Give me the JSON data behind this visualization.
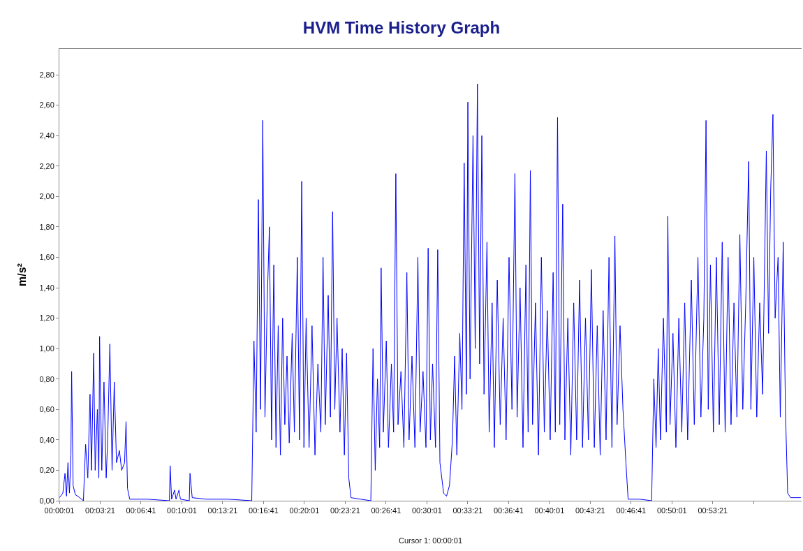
{
  "chart_data": {
    "type": "line",
    "title": "HVM Time History Graph",
    "ylabel": "m/s²",
    "annotations": [
      "Cursor 1: 00:00:01"
    ],
    "x": [
      0.0003,
      0.005,
      0.008,
      0.01,
      0.012,
      0.014,
      0.016,
      0.017,
      0.019,
      0.022,
      0.028,
      0.033,
      0.036,
      0.039,
      0.042,
      0.044,
      0.047,
      0.049,
      0.052,
      0.054,
      0.055,
      0.058,
      0.061,
      0.064,
      0.066,
      0.069,
      0.072,
      0.075,
      0.078,
      0.082,
      0.085,
      0.089,
      0.091,
      0.093,
      0.096,
      0.12,
      0.15,
      0.151,
      0.153,
      0.157,
      0.159,
      0.163,
      0.165,
      0.177,
      0.178,
      0.181,
      0.2,
      0.23,
      0.262,
      0.265,
      0.268,
      0.271,
      0.274,
      0.277,
      0.28,
      0.283,
      0.286,
      0.289,
      0.292,
      0.295,
      0.298,
      0.301,
      0.304,
      0.307,
      0.31,
      0.313,
      0.317,
      0.32,
      0.324,
      0.327,
      0.33,
      0.333,
      0.336,
      0.34,
      0.344,
      0.348,
      0.352,
      0.356,
      0.359,
      0.362,
      0.366,
      0.369,
      0.372,
      0.375,
      0.378,
      0.382,
      0.385,
      0.388,
      0.391,
      0.394,
      0.397,
      0.41,
      0.424,
      0.427,
      0.43,
      0.433,
      0.436,
      0.438,
      0.441,
      0.445,
      0.448,
      0.452,
      0.455,
      0.458,
      0.461,
      0.465,
      0.469,
      0.473,
      0.476,
      0.48,
      0.484,
      0.488,
      0.491,
      0.495,
      0.499,
      0.502,
      0.505,
      0.508,
      0.512,
      0.515,
      0.518,
      0.523,
      0.527,
      0.531,
      0.535,
      0.538,
      0.541,
      0.545,
      0.548,
      0.551,
      0.554,
      0.556,
      0.559,
      0.563,
      0.566,
      0.569,
      0.572,
      0.575,
      0.578,
      0.582,
      0.585,
      0.589,
      0.592,
      0.596,
      0.6,
      0.604,
      0.608,
      0.612,
      0.616,
      0.62,
      0.623,
      0.627,
      0.631,
      0.635,
      0.638,
      0.641,
      0.644,
      0.648,
      0.652,
      0.656,
      0.66,
      0.664,
      0.668,
      0.672,
      0.675,
      0.678,
      0.681,
      0.685,
      0.688,
      0.692,
      0.696,
      0.7,
      0.704,
      0.708,
      0.712,
      0.716,
      0.72,
      0.724,
      0.728,
      0.732,
      0.736,
      0.74,
      0.744,
      0.748,
      0.752,
      0.756,
      0.759,
      0.763,
      0.767,
      0.771,
      0.774,
      0.79,
      0.806,
      0.809,
      0.812,
      0.815,
      0.818,
      0.822,
      0.826,
      0.828,
      0.831,
      0.835,
      0.839,
      0.843,
      0.847,
      0.851,
      0.855,
      0.86,
      0.864,
      0.869,
      0.873,
      0.877,
      0.88,
      0.883,
      0.886,
      0.89,
      0.894,
      0.898,
      0.902,
      0.906,
      0.91,
      0.914,
      0.918,
      0.922,
      0.926,
      0.93,
      0.934,
      0.938,
      0.941,
      0.945,
      0.949,
      0.953,
      0.957,
      0.962,
      0.965,
      0.968,
      0.971,
      0.974,
      0.978,
      0.981,
      0.985,
      0.988,
      0.991,
      0.995,
      1.009
    ],
    "series": [
      {
        "color": "#0000ff",
        "values": [
          0.02,
          0.05,
          0.18,
          0.03,
          0.25,
          0.05,
          0.3,
          0.85,
          0.1,
          0.04,
          0.02,
          0.0,
          0.37,
          0.15,
          0.7,
          0.2,
          0.97,
          0.2,
          0.6,
          0.15,
          1.08,
          0.2,
          0.78,
          0.15,
          0.4,
          1.03,
          0.2,
          0.78,
          0.25,
          0.33,
          0.2,
          0.25,
          0.52,
          0.08,
          0.01,
          0.01,
          0.0,
          0.23,
          0.01,
          0.07,
          0.01,
          0.07,
          0.01,
          0.0,
          0.18,
          0.02,
          0.01,
          0.01,
          0.0,
          1.05,
          0.45,
          1.98,
          0.6,
          2.5,
          0.55,
          1.3,
          1.8,
          0.4,
          1.55,
          0.35,
          1.15,
          0.3,
          1.2,
          0.5,
          0.95,
          0.38,
          1.1,
          0.45,
          1.6,
          0.4,
          2.1,
          0.35,
          1.2,
          0.35,
          1.15,
          0.3,
          0.9,
          0.45,
          1.6,
          0.5,
          1.35,
          0.55,
          1.9,
          0.6,
          1.2,
          0.45,
          1.0,
          0.3,
          0.97,
          0.15,
          0.02,
          0.01,
          0.0,
          1.0,
          0.2,
          0.8,
          0.35,
          1.53,
          0.45,
          1.05,
          0.35,
          0.9,
          0.45,
          2.15,
          0.5,
          0.85,
          0.35,
          1.5,
          0.4,
          0.95,
          0.35,
          1.6,
          0.45,
          0.85,
          0.35,
          1.66,
          0.4,
          0.9,
          0.35,
          1.65,
          0.25,
          0.05,
          0.03,
          0.1,
          0.4,
          0.95,
          0.3,
          1.1,
          0.6,
          2.22,
          0.7,
          2.62,
          0.8,
          2.4,
          1.0,
          2.74,
          0.9,
          2.4,
          0.7,
          1.7,
          0.45,
          1.3,
          0.35,
          1.45,
          0.5,
          1.2,
          0.4,
          1.6,
          0.6,
          2.15,
          0.55,
          1.4,
          0.35,
          1.55,
          0.45,
          2.17,
          0.5,
          1.3,
          0.3,
          1.6,
          0.45,
          1.25,
          0.4,
          1.5,
          0.45,
          2.52,
          0.5,
          1.95,
          0.4,
          1.2,
          0.3,
          1.3,
          0.4,
          1.45,
          0.35,
          1.2,
          0.4,
          1.52,
          0.35,
          1.15,
          0.3,
          1.25,
          0.4,
          1.6,
          0.35,
          1.74,
          0.5,
          1.15,
          0.6,
          0.25,
          0.01,
          0.01,
          0.0,
          0.8,
          0.35,
          1.0,
          0.4,
          1.2,
          0.45,
          1.87,
          0.5,
          1.1,
          0.35,
          1.2,
          0.45,
          1.3,
          0.4,
          1.45,
          0.5,
          1.6,
          0.55,
          1.2,
          2.5,
          0.6,
          1.55,
          0.45,
          1.6,
          0.5,
          1.7,
          0.45,
          1.6,
          0.5,
          1.3,
          0.55,
          1.75,
          0.6,
          1.3,
          2.23,
          0.6,
          1.6,
          0.55,
          1.3,
          0.7,
          2.3,
          1.1,
          2.05,
          2.54,
          1.2,
          1.6,
          0.55,
          1.7,
          0.6,
          0.05,
          0.02,
          0.02
        ]
      }
    ],
    "xlim": [
      0.00028,
      1.01
    ],
    "xticks": [
      {
        "value": 0.00028,
        "label": "00:00:01"
      },
      {
        "value": 0.05583,
        "label": "00:03:21"
      },
      {
        "value": 0.11139,
        "label": "00:06:41"
      },
      {
        "value": 0.16694,
        "label": "00:10:01"
      },
      {
        "value": 0.2225,
        "label": "00:13:21"
      },
      {
        "value": 0.27806,
        "label": "00:16:41"
      },
      {
        "value": 0.33361,
        "label": "00:20:01"
      },
      {
        "value": 0.38917,
        "label": "00:23:21"
      },
      {
        "value": 0.44472,
        "label": "00:26:41"
      },
      {
        "value": 0.50028,
        "label": "00:30:01"
      },
      {
        "value": 0.55583,
        "label": "00:33:21"
      },
      {
        "value": 0.61139,
        "label": "00:36:41"
      },
      {
        "value": 0.66694,
        "label": "00:40:01"
      },
      {
        "value": 0.7225,
        "label": "00:43:21"
      },
      {
        "value": 0.77806,
        "label": "00:46:41"
      },
      {
        "value": 0.83361,
        "label": "00:50:01"
      },
      {
        "value": 0.88917,
        "label": "00:53:21"
      },
      {
        "value": 0.94472,
        "label": null
      }
    ],
    "ylim": [
      0,
      2.97
    ],
    "yticks": [
      {
        "value": 0,
        "label": "0,00"
      },
      {
        "value": 0.2,
        "label": "0,20"
      },
      {
        "value": 0.4,
        "label": "0,40"
      },
      {
        "value": 0.6,
        "label": "0,60"
      },
      {
        "value": 0.8,
        "label": "0,80"
      },
      {
        "value": 1.0,
        "label": "1,00"
      },
      {
        "value": 1.2,
        "label": "1,20"
      },
      {
        "value": 1.4,
        "label": "1,40"
      },
      {
        "value": 1.6,
        "label": "1,60"
      },
      {
        "value": 1.8,
        "label": "1,80"
      },
      {
        "value": 2.0,
        "label": "2,00"
      },
      {
        "value": 2.2,
        "label": "2,20"
      },
      {
        "value": 2.4,
        "label": "2,40"
      },
      {
        "value": 2.6,
        "label": "2,60"
      },
      {
        "value": 2.8,
        "label": "2,80"
      }
    ],
    "marker": "none",
    "line_style": "solid"
  }
}
